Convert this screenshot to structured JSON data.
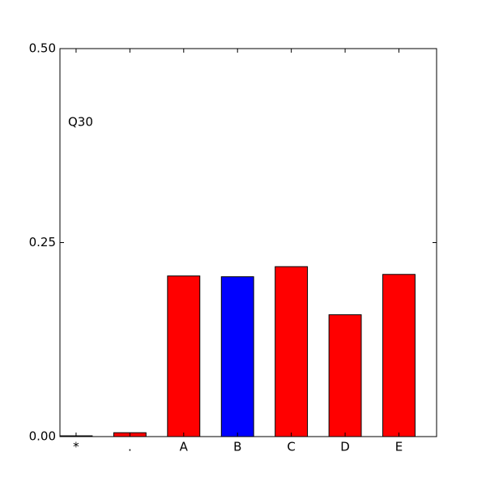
{
  "chart_data": {
    "type": "bar",
    "annotation": "Q30",
    "categories": [
      "*",
      ".",
      "A",
      "B",
      "C",
      "D",
      "E"
    ],
    "values": [
      0.001,
      0.005,
      0.207,
      0.206,
      0.219,
      0.157,
      0.209
    ],
    "colors": [
      "#ff0000",
      "#ff0000",
      "#ff0000",
      "#0000ff",
      "#ff0000",
      "#ff0000",
      "#ff0000"
    ],
    "ylim": [
      0,
      0.5
    ],
    "yticks": [
      {
        "value": 0,
        "label": "0.00"
      },
      {
        "value": 0.25,
        "label": "0.25"
      },
      {
        "value": 0.5,
        "label": "0.50"
      }
    ],
    "grid": false
  }
}
